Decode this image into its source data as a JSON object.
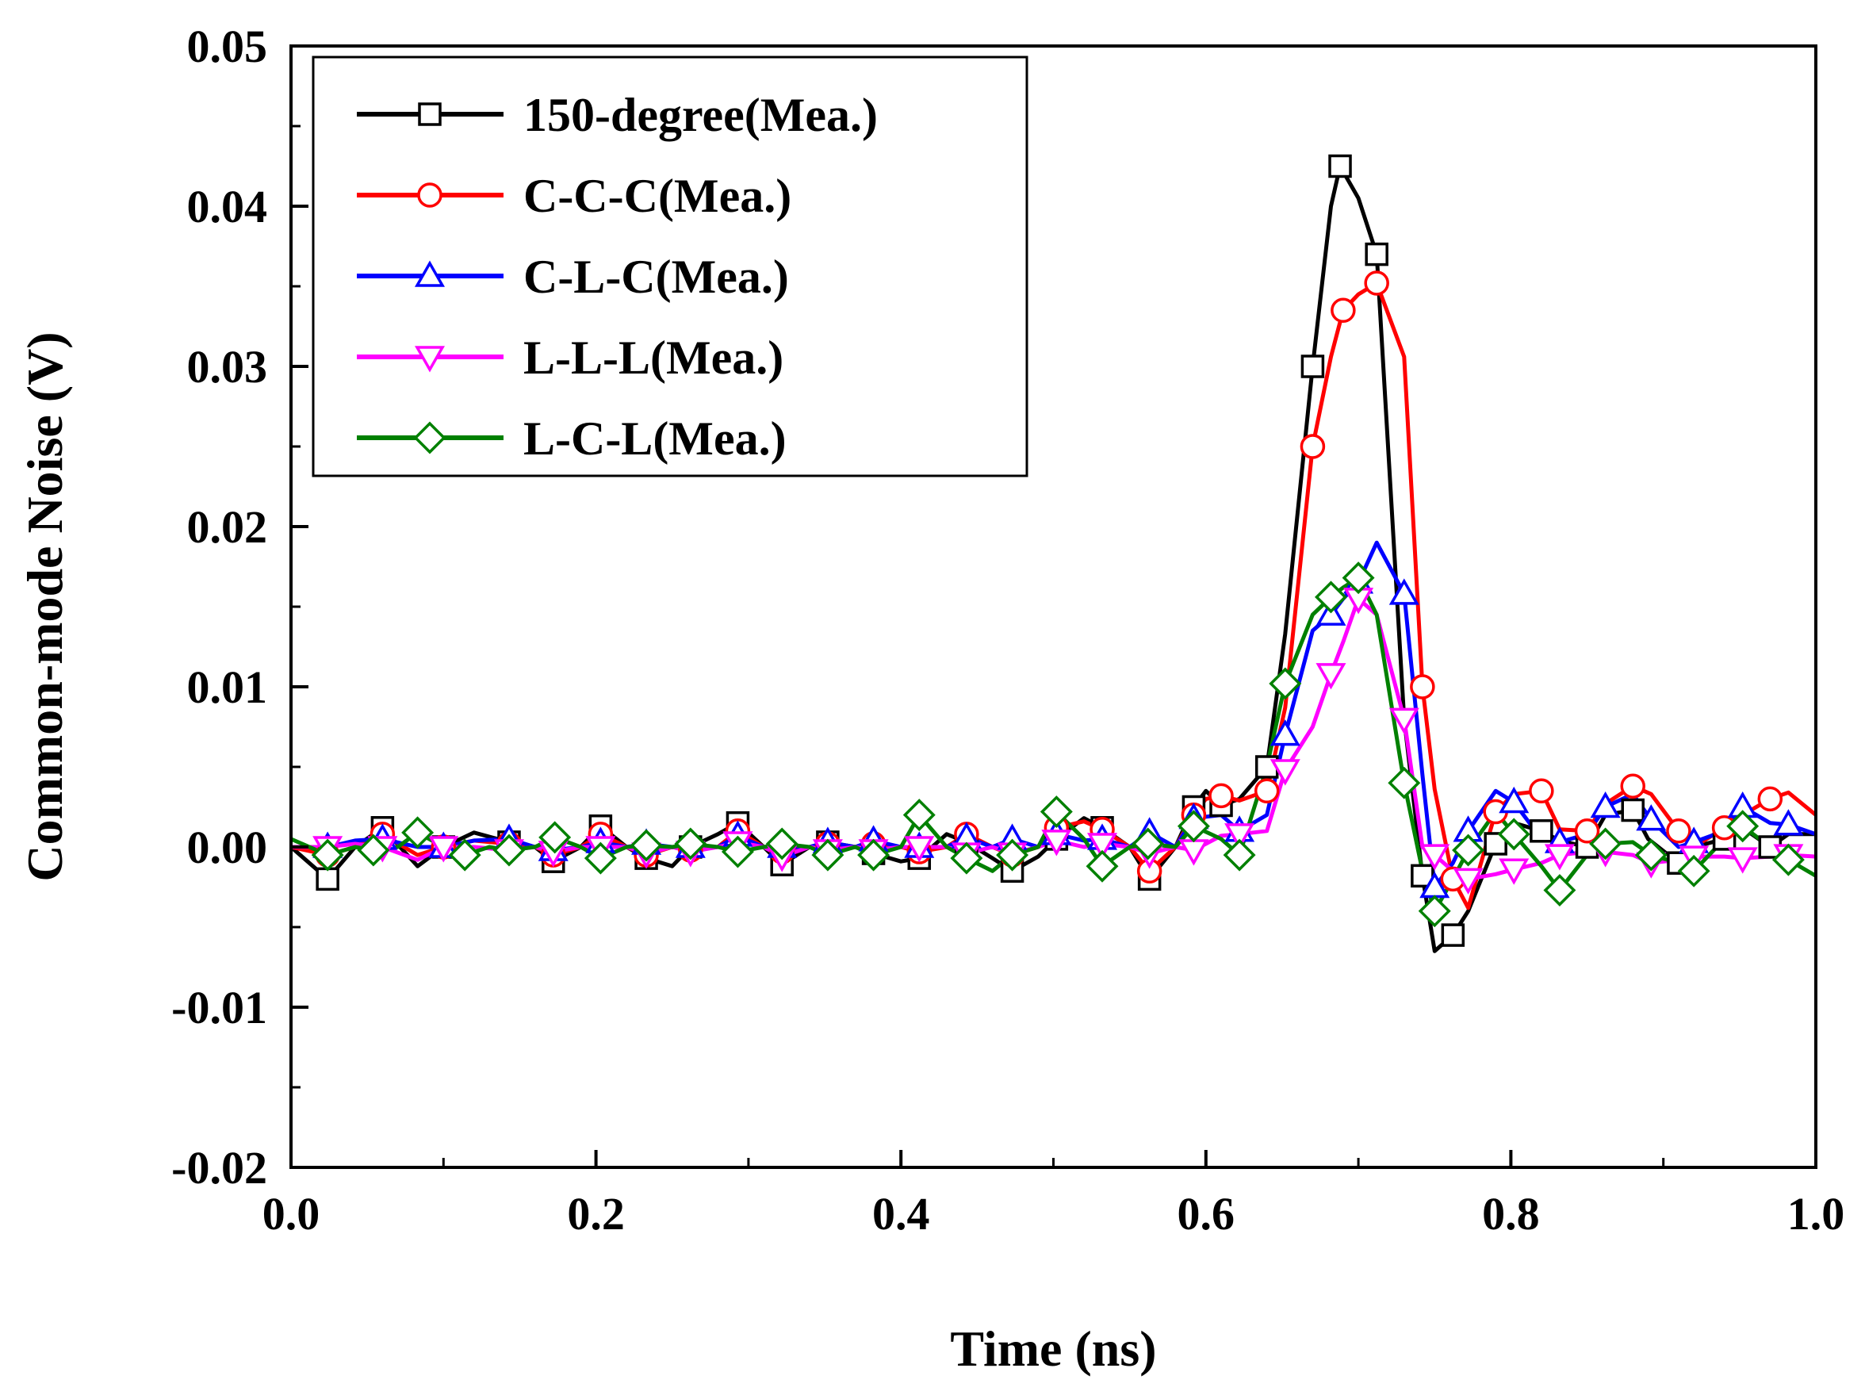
{
  "chart_data": {
    "type": "line",
    "title": "",
    "xlabel": "Time (ns)",
    "ylabel": "Common-mode Noise (V)",
    "xlim": [
      0.0,
      1.0
    ],
    "ylim": [
      -0.02,
      0.05
    ],
    "x_ticks": [
      0.0,
      0.2,
      0.4,
      0.6,
      0.8,
      1.0
    ],
    "x_tick_labels": [
      "0.0",
      "0.2",
      "0.4",
      "0.6",
      "0.8",
      "1.0"
    ],
    "y_ticks": [
      -0.02,
      -0.01,
      0.0,
      0.01,
      0.02,
      0.03,
      0.04,
      0.05
    ],
    "y_tick_labels": [
      "-0.02",
      "-0.01",
      "0.00",
      "0.01",
      "0.02",
      "0.03",
      "0.04",
      "0.05"
    ],
    "grid": false,
    "legend_position": "top-left",
    "series": [
      {
        "name": "150-degree(Mea.)",
        "color": "#000000",
        "marker": "square",
        "x": [
          0.0,
          0.024,
          0.042,
          0.06,
          0.083,
          0.1,
          0.12,
          0.143,
          0.16,
          0.172,
          0.19,
          0.203,
          0.22,
          0.233,
          0.25,
          0.262,
          0.28,
          0.293,
          0.31,
          0.322,
          0.34,
          0.352,
          0.37,
          0.382,
          0.4,
          0.412,
          0.43,
          0.443,
          0.46,
          0.473,
          0.49,
          0.502,
          0.52,
          0.532,
          0.55,
          0.563,
          0.58,
          0.592,
          0.6,
          0.61,
          0.622,
          0.64,
          0.652,
          0.67,
          0.682,
          0.688,
          0.7,
          0.712,
          0.73,
          0.742,
          0.75,
          0.762,
          0.772,
          0.79,
          0.802,
          0.82,
          0.832,
          0.85,
          0.862,
          0.88,
          0.89,
          0.91,
          0.92,
          0.94,
          0.952,
          0.97,
          0.982,
          1.0
        ],
        "y": [
          0.0,
          -0.002,
          0.0,
          0.0012,
          -0.0012,
          0.0,
          0.0009,
          0.0003,
          0.0,
          -0.0009,
          0.0,
          0.0013,
          0.0,
          -0.0007,
          -0.0012,
          0.0,
          0.0008,
          0.0015,
          0.0,
          -0.0011,
          0.0,
          0.0003,
          0.0,
          -0.0004,
          -0.0009,
          -0.0007,
          0.0008,
          0.0003,
          -0.0007,
          -0.0015,
          -0.0006,
          0.0005,
          0.0018,
          0.0012,
          0.0,
          -0.002,
          0.0,
          0.0025,
          0.0035,
          0.0026,
          0.003,
          0.005,
          0.0133,
          0.03,
          0.04,
          0.0425,
          0.0405,
          0.037,
          0.008,
          -0.0018,
          -0.0065,
          -0.0055,
          -0.004,
          0.0002,
          0.0015,
          0.001,
          0.0004,
          0.0,
          0.002,
          0.0023,
          0.0005,
          -0.001,
          0.0,
          0.0005,
          0.0012,
          0.0,
          0.0008,
          0.0008
        ]
      },
      {
        "name": "C-C-C(Mea.)",
        "color": "#ff0000",
        "marker": "circle",
        "x": [
          0.0,
          0.024,
          0.042,
          0.06,
          0.083,
          0.1,
          0.12,
          0.143,
          0.16,
          0.172,
          0.19,
          0.203,
          0.22,
          0.233,
          0.25,
          0.262,
          0.28,
          0.293,
          0.31,
          0.322,
          0.34,
          0.352,
          0.37,
          0.382,
          0.4,
          0.412,
          0.43,
          0.443,
          0.46,
          0.473,
          0.49,
          0.502,
          0.52,
          0.532,
          0.55,
          0.563,
          0.58,
          0.592,
          0.6,
          0.61,
          0.622,
          0.64,
          0.652,
          0.67,
          0.682,
          0.69,
          0.7,
          0.712,
          0.73,
          0.742,
          0.75,
          0.762,
          0.772,
          0.79,
          0.802,
          0.82,
          0.832,
          0.85,
          0.862,
          0.88,
          0.892,
          0.91,
          0.92,
          0.94,
          0.952,
          0.97,
          0.982,
          1.0
        ],
        "y": [
          0.0,
          -0.0005,
          0.0,
          0.0008,
          -0.0005,
          0.0,
          0.0004,
          0.0002,
          0.0,
          -0.0005,
          0.0,
          0.0008,
          0.0,
          -0.0005,
          0.0,
          -0.0002,
          0.0,
          0.001,
          0.0,
          -0.0003,
          0.0,
          0.0002,
          0.0,
          0.0002,
          0.0,
          -0.0003,
          0.0,
          0.0008,
          0.0,
          -0.0005,
          0.0,
          0.0012,
          0.0016,
          0.0011,
          0.0,
          -0.0015,
          0.0,
          0.002,
          0.003,
          0.0032,
          0.0029,
          0.0035,
          0.0087,
          0.025,
          0.0306,
          0.0335,
          0.0345,
          0.0352,
          0.0306,
          0.01,
          0.0036,
          -0.002,
          -0.0038,
          0.0022,
          0.0033,
          0.0035,
          0.0011,
          0.001,
          0.0027,
          0.0038,
          0.0033,
          0.001,
          0.0,
          0.0012,
          0.002,
          0.003,
          0.0034,
          0.002
        ]
      },
      {
        "name": "C-L-C(Mea.)",
        "color": "#0000ff",
        "marker": "triangle-up",
        "x": [
          0.0,
          0.024,
          0.042,
          0.06,
          0.083,
          0.1,
          0.12,
          0.143,
          0.16,
          0.172,
          0.19,
          0.203,
          0.22,
          0.233,
          0.25,
          0.262,
          0.28,
          0.293,
          0.31,
          0.322,
          0.34,
          0.352,
          0.37,
          0.382,
          0.4,
          0.412,
          0.43,
          0.443,
          0.46,
          0.473,
          0.49,
          0.502,
          0.52,
          0.532,
          0.55,
          0.563,
          0.58,
          0.592,
          0.61,
          0.622,
          0.64,
          0.652,
          0.67,
          0.682,
          0.69,
          0.7,
          0.712,
          0.73,
          0.742,
          0.75,
          0.762,
          0.772,
          0.79,
          0.802,
          0.82,
          0.832,
          0.85,
          0.862,
          0.88,
          0.892,
          0.91,
          0.92,
          0.94,
          0.952,
          0.97,
          0.982,
          1.0
        ],
        "y": [
          0.0,
          0.0,
          0.0004,
          0.0005,
          0.0,
          0.0,
          0.0004,
          0.0005,
          0.0,
          -0.0002,
          0.0,
          0.0003,
          0.0,
          0.0002,
          0.0,
          0.0,
          0.0,
          0.0007,
          0.0,
          0.0,
          0.0,
          0.0003,
          0.0,
          0.0004,
          0.0,
          0.0,
          0.0,
          0.0006,
          0.0,
          0.0005,
          0.0,
          0.0008,
          0.0004,
          0.0005,
          0.0,
          0.0009,
          0.0,
          0.0018,
          0.002,
          0.001,
          0.002,
          0.007,
          0.0135,
          0.0145,
          0.0155,
          0.0165,
          0.019,
          0.0158,
          0.0045,
          -0.0025,
          -0.001,
          0.001,
          0.0035,
          0.0028,
          0.0005,
          0.0003,
          0.0008,
          0.0025,
          0.0033,
          0.0017,
          0.0,
          0.0003,
          0.001,
          0.0025,
          0.0015,
          0.0014,
          0.0008
        ]
      },
      {
        "name": "L-L-L(Mea.)",
        "color": "#ff00ff",
        "marker": "triangle-down",
        "x": [
          0.0,
          0.024,
          0.042,
          0.06,
          0.083,
          0.1,
          0.12,
          0.143,
          0.16,
          0.172,
          0.19,
          0.203,
          0.22,
          0.233,
          0.25,
          0.262,
          0.28,
          0.293,
          0.31,
          0.322,
          0.34,
          0.352,
          0.37,
          0.382,
          0.4,
          0.412,
          0.43,
          0.443,
          0.46,
          0.473,
          0.49,
          0.502,
          0.52,
          0.532,
          0.55,
          0.563,
          0.58,
          0.592,
          0.61,
          0.622,
          0.64,
          0.652,
          0.67,
          0.682,
          0.69,
          0.7,
          0.712,
          0.73,
          0.742,
          0.75,
          0.762,
          0.772,
          0.79,
          0.802,
          0.82,
          0.832,
          0.85,
          0.862,
          0.88,
          0.892,
          0.91,
          0.92,
          0.94,
          0.952,
          0.97,
          0.982,
          1.0
        ],
        "y": [
          0.0,
          0.0,
          0.0002,
          0.0,
          -0.0008,
          0.0,
          0.0,
          -0.0002,
          0.0,
          -0.0003,
          0.0,
          0.0,
          0.0,
          -0.0004,
          0.0,
          -0.0003,
          0.0,
          0.0003,
          0.0,
          -0.0006,
          0.0,
          -0.0002,
          0.0,
          -0.0002,
          0.0,
          0.0,
          0.0,
          -0.0004,
          0.0,
          -0.0004,
          0.0,
          0.0004,
          0.0,
          0.0002,
          0.0,
          -0.0004,
          0.0,
          -0.0002,
          0.0007,
          0.0008,
          0.001,
          0.0048,
          0.0075,
          0.0108,
          0.0128,
          0.0155,
          0.0145,
          0.008,
          0.0,
          -0.0005,
          -0.0015,
          -0.002,
          -0.0017,
          -0.0014,
          -0.001,
          -0.0005,
          -0.0003,
          -0.0003,
          -0.0005,
          -0.001,
          -0.0008,
          -0.0006,
          -0.0006,
          -0.0007,
          -0.0006,
          -0.0005,
          -0.0006
        ]
      },
      {
        "name": "L-C-L(Mea.)",
        "color": "#008000",
        "marker": "diamond",
        "x": [
          0.0,
          0.024,
          0.042,
          0.054,
          0.07,
          0.083,
          0.1,
          0.114,
          0.13,
          0.143,
          0.16,
          0.173,
          0.19,
          0.203,
          0.22,
          0.233,
          0.25,
          0.262,
          0.28,
          0.293,
          0.31,
          0.322,
          0.34,
          0.352,
          0.37,
          0.382,
          0.4,
          0.412,
          0.43,
          0.443,
          0.46,
          0.473,
          0.49,
          0.502,
          0.52,
          0.532,
          0.55,
          0.562,
          0.58,
          0.592,
          0.61,
          0.622,
          0.64,
          0.652,
          0.67,
          0.682,
          0.69,
          0.7,
          0.712,
          0.73,
          0.742,
          0.75,
          0.762,
          0.772,
          0.79,
          0.802,
          0.82,
          0.832,
          0.85,
          0.862,
          0.88,
          0.892,
          0.91,
          0.92,
          0.94,
          0.952,
          0.97,
          0.982,
          1.0
        ],
        "y": [
          0.0005,
          -0.0005,
          0.0,
          -0.0002,
          0.0,
          0.0009,
          0.0,
          -0.0005,
          0.0,
          -0.0002,
          0.0,
          0.0006,
          0.0,
          -0.0007,
          0.0,
          0.0001,
          0.0,
          0.0002,
          0.0,
          -0.0003,
          0.0,
          0.0002,
          0.0,
          -0.0005,
          0.0,
          -0.0005,
          0.0,
          0.002,
          0.0,
          -0.0007,
          -0.0015,
          -0.0005,
          0.0,
          0.0022,
          0.0005,
          -0.0012,
          0.0,
          0.0002,
          0.0,
          0.0013,
          0.0005,
          -0.0005,
          0.005,
          0.0102,
          0.0145,
          0.0156,
          0.0162,
          0.0168,
          0.0145,
          0.004,
          -0.0015,
          -0.004,
          -0.002,
          -0.0002,
          0.0022,
          0.0008,
          -0.0012,
          -0.0027,
          -0.0005,
          0.0002,
          0.0003,
          -0.0005,
          -0.001,
          -0.0015,
          0.0005,
          0.0013,
          0.0,
          -0.0008,
          -0.0018
        ]
      }
    ]
  }
}
